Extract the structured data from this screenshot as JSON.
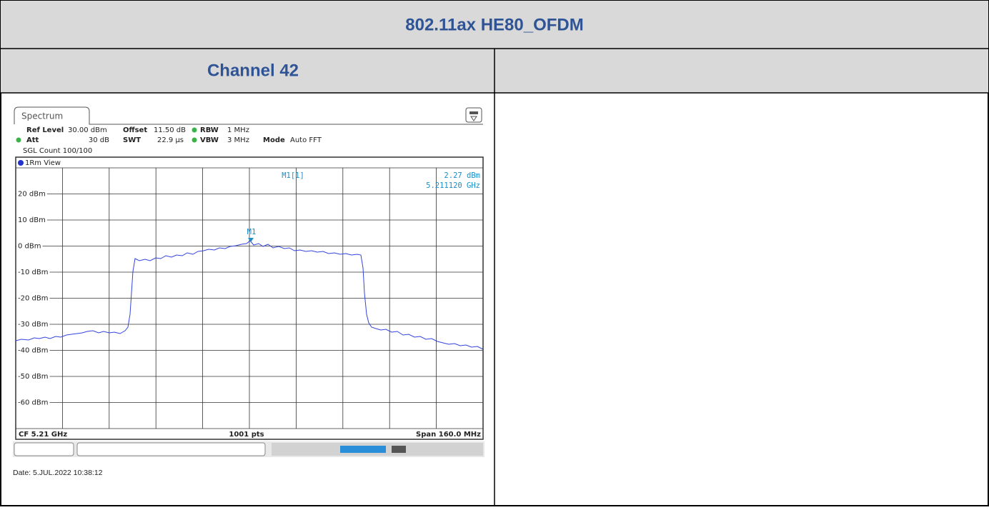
{
  "title": "802.11ax HE80_OFDM",
  "channel": "Channel 42",
  "spectrum": {
    "tab": "Spectrum",
    "ref_level_label": "Ref Level",
    "ref_level": "30.00 dBm",
    "offset_label": "Offset",
    "offset": "11.50 dB",
    "rbw_label": "RBW",
    "rbw": "1 MHz",
    "att_label": "Att",
    "att": "30 dB",
    "swt_label": "SWT",
    "swt": "22.9 µs",
    "vbw_label": "VBW",
    "vbw": "3 MHz",
    "mode_label": "Mode",
    "mode": "Auto FFT",
    "sgl_count": "SGL Count 100/100",
    "view": "1Rm View",
    "marker_name": "M1[1]",
    "marker_level": "2.27 dBm",
    "marker_freq": "5.211120 GHz",
    "marker_tag": "M1",
    "y_labels": [
      "20 dBm",
      "10 dBm",
      "0 dBm",
      "-10 dBm",
      "-20 dBm",
      "-30 dBm",
      "-40 dBm",
      "-50 dBm",
      "-60 dBm"
    ],
    "center": "CF 5.21 GHz",
    "points": "1001 pts",
    "span": "Span 160.0 MHz"
  },
  "date": "Date: 5.JUL.2022  10:38:12"
}
